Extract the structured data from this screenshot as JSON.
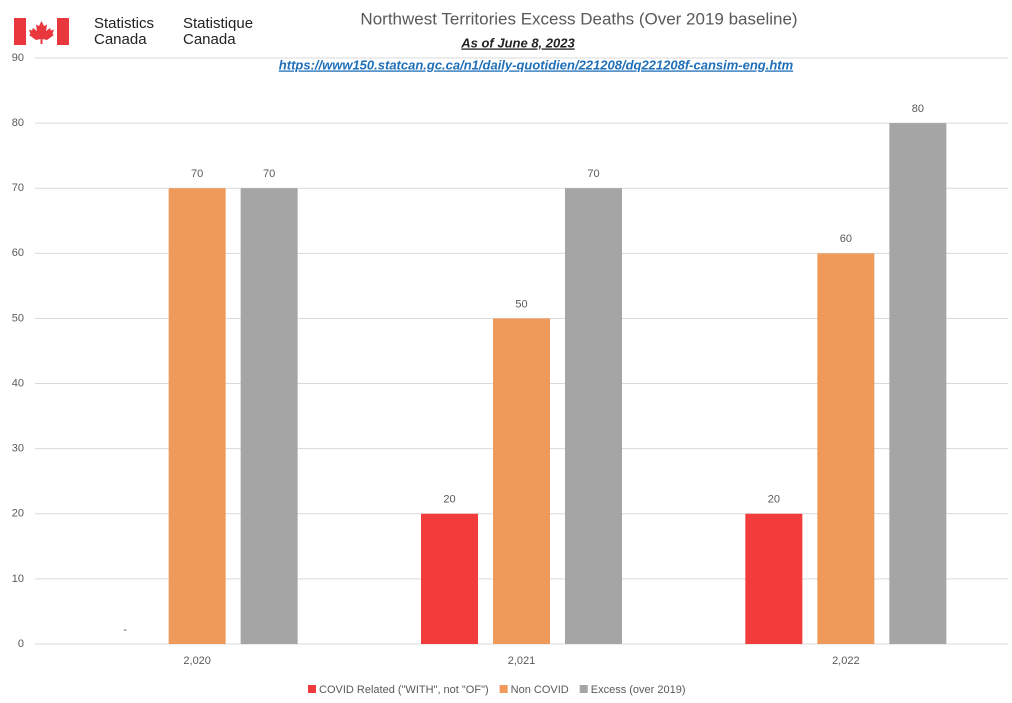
{
  "branding": {
    "english": [
      "Statistics",
      "Canada"
    ],
    "french": [
      "Statistique",
      "Canada"
    ]
  },
  "chart_data": {
    "type": "bar",
    "title": "Northwest Territories Excess Deaths (Over 2019 baseline)",
    "subtitle": "As of June 8, 2023",
    "source": "https://www150.statcan.gc.ca/n1/daily-quotidien/221208/dq221208f-cansim-eng.htm",
    "categories": [
      "2,020",
      "2,021",
      "2,022"
    ],
    "series": [
      {
        "name": "COVID Related (\"WITH\", not \"OF\")",
        "color": "#f23b3b",
        "values": [
          0,
          20,
          20
        ],
        "value_labels": [
          "-",
          "20",
          "20"
        ]
      },
      {
        "name": "Non COVID",
        "color": "#ef9a5a",
        "values": [
          70,
          50,
          60
        ]
      },
      {
        "name": "Excess (over 2019)",
        "color": "#a5a5a5",
        "values": [
          70,
          70,
          80
        ]
      }
    ],
    "ylim": [
      0,
      90
    ],
    "yticks": [
      0,
      10,
      20,
      30,
      40,
      50,
      60,
      70,
      80,
      90
    ],
    "grid": true,
    "legend": "bottom"
  }
}
